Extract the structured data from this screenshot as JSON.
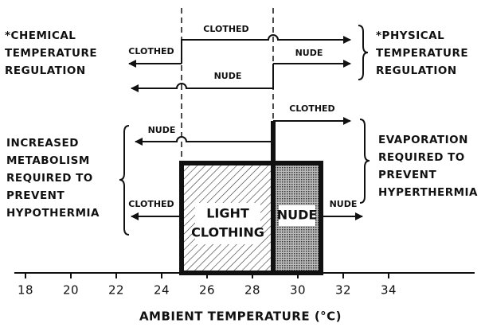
{
  "left_note": [
    "*CHEMICAL",
    "TEMPERATURE",
    "REGULATION"
  ],
  "right_note": [
    "*PHYSICAL",
    "TEMPERATURE",
    "REGULATION"
  ],
  "left_middle": [
    "INCREASED",
    "METABOLISM",
    "REQUIRED TO",
    "PREVENT",
    "HYPOTHERMIA"
  ],
  "right_middle": [
    "EVAPORATION",
    "REQUIRED TO",
    "PREVENT",
    "HYPERTHERMIA"
  ],
  "arrows": [
    "CLOTHED",
    "CLOTHED",
    "NUDE",
    "NUDE",
    "CLOTHED",
    "NUDE",
    "CLOTHED",
    "NUDE"
  ],
  "boxes": {
    "light": [
      "LIGHT",
      "CLOTHING"
    ],
    "nude": "NUDE"
  },
  "axis": {
    "label": "AMBIENT TEMPERATURE (°C)",
    "ticks": [
      18,
      20,
      22,
      24,
      26,
      28,
      30,
      32,
      34
    ]
  }
}
